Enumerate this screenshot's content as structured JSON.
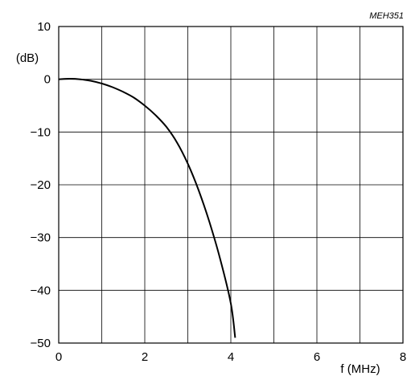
{
  "figure_ref": "MEH351",
  "chart_data": {
    "type": "line",
    "title": "",
    "xlabel": "f (MHz)",
    "ylabel": "(dB)",
    "xlim": [
      0,
      8
    ],
    "ylim": [
      -50,
      10
    ],
    "x_ticks": [
      "0",
      "2",
      "4",
      "6",
      "8"
    ],
    "y_ticks": [
      "10",
      "0",
      "−10",
      "−20",
      "−30",
      "−40",
      "−50"
    ],
    "grid": true,
    "series": [
      {
        "name": "",
        "x": [
          0.0,
          0.25,
          0.5,
          0.75,
          1.0,
          1.25,
          1.5,
          1.75,
          2.0,
          2.25,
          2.5,
          2.75,
          3.0,
          3.25,
          3.5,
          3.75,
          4.0,
          4.1
        ],
        "y": [
          0.0,
          0.1,
          0.0,
          -0.3,
          -0.8,
          -1.5,
          -2.4,
          -3.5,
          -5.0,
          -6.8,
          -9.0,
          -12.0,
          -16.0,
          -21.0,
          -27.0,
          -34.0,
          -42.5,
          -49.0
        ]
      }
    ]
  }
}
